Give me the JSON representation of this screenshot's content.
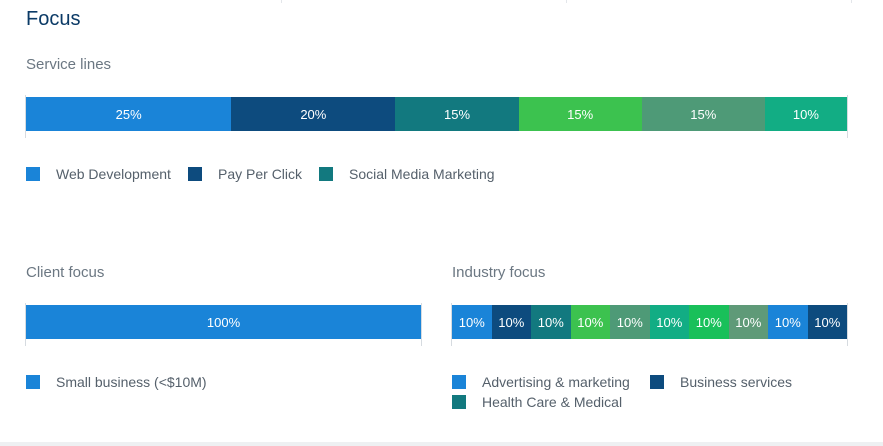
{
  "page": {
    "title": "Focus"
  },
  "service_lines": {
    "label": "Service lines",
    "segments": [
      {
        "label": "25%",
        "value": 25,
        "color": "#1a84d8"
      },
      {
        "label": "20%",
        "value": 20,
        "color": "#0d4b7e"
      },
      {
        "label": "15%",
        "value": 15,
        "color": "#12797f"
      },
      {
        "label": "15%",
        "value": 15,
        "color": "#3cc24f"
      },
      {
        "label": "15%",
        "value": 15,
        "color": "#4e9a77"
      },
      {
        "label": "10%",
        "value": 10,
        "color": "#12ad84"
      }
    ],
    "legend": [
      {
        "label": "Web Development",
        "color": "#1a84d8"
      },
      {
        "label": "Pay Per Click",
        "color": "#0d4b7e"
      },
      {
        "label": "Social Media Marketing",
        "color": "#12797f"
      }
    ]
  },
  "client_focus": {
    "label": "Client focus",
    "segments": [
      {
        "label": "100%",
        "value": 100,
        "color": "#1a84d8"
      }
    ],
    "legend": [
      {
        "label": "Small business (<$10M)",
        "color": "#1a84d8"
      }
    ]
  },
  "industry_focus": {
    "label": "Industry focus",
    "segments": [
      {
        "label": "10%",
        "value": 10,
        "color": "#1a84d8"
      },
      {
        "label": "10%",
        "value": 10,
        "color": "#0d4b7e"
      },
      {
        "label": "10%",
        "value": 10,
        "color": "#12797f"
      },
      {
        "label": "10%",
        "value": 10,
        "color": "#3cc24f"
      },
      {
        "label": "10%",
        "value": 10,
        "color": "#4e9a77"
      },
      {
        "label": "10%",
        "value": 10,
        "color": "#12ad84"
      },
      {
        "label": "10%",
        "value": 10,
        "color": "#19c05a"
      },
      {
        "label": "10%",
        "value": 10,
        "color": "#5f9a78"
      },
      {
        "label": "10%",
        "value": 10,
        "color": "#1a84d8"
      },
      {
        "label": "10%",
        "value": 10,
        "color": "#0d4b7e"
      }
    ],
    "legend": [
      {
        "label": "Advertising & marketing",
        "color": "#1a84d8"
      },
      {
        "label": "Business services",
        "color": "#0d4b7e"
      },
      {
        "label": "Health Care & Medical",
        "color": "#12797f"
      }
    ]
  }
}
